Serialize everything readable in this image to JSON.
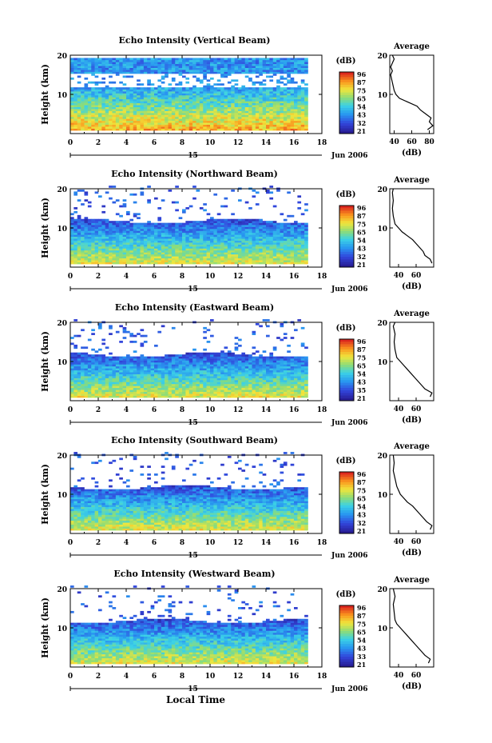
{
  "chart_data": [
    {
      "type": "heatmap",
      "title": "Echo Intensity (Vertical Beam)",
      "ylabel": "Height (km)",
      "xlim": [
        0,
        18
      ],
      "ylim": [
        0,
        20
      ],
      "x_ticks": [
        "0",
        "2",
        "4",
        "6",
        "8",
        "10",
        "12",
        "14",
        "16",
        "18"
      ],
      "y_ticks": [
        "20",
        "10"
      ],
      "date_label": "15",
      "month_label": "Jun 2006",
      "colorbar_unit": "(dB)",
      "colorbar_ticks": [
        "96",
        "87",
        "75",
        "65",
        "54",
        "43",
        "32",
        "21"
      ],
      "average_title": "Average",
      "average_xlabel": "(dB)",
      "average_x_ticks": [
        "40",
        "60",
        "80"
      ],
      "average_y_ticks": [
        "20",
        "10"
      ],
      "average_xlim": [
        35,
        85
      ],
      "average_profile": [
        [
          78,
          1
        ],
        [
          84,
          2
        ],
        [
          80,
          3
        ],
        [
          82,
          4
        ],
        [
          76,
          5
        ],
        [
          70,
          6
        ],
        [
          66,
          7
        ],
        [
          56,
          8
        ],
        [
          46,
          9
        ],
        [
          42,
          10
        ],
        [
          40,
          11
        ],
        [
          38,
          13
        ],
        [
          36,
          15
        ],
        [
          38,
          16
        ],
        [
          36,
          17
        ],
        [
          38,
          18
        ],
        [
          40,
          19
        ],
        [
          38,
          20
        ]
      ],
      "colorscale": "jet",
      "band_top_km": 19,
      "gap_range_km": [
        11.5,
        15
      ]
    },
    {
      "type": "heatmap",
      "title": "Echo Intensity (Northward Beam)",
      "ylabel": "Height (km)",
      "xlim": [
        0,
        18
      ],
      "ylim": [
        0,
        20
      ],
      "x_ticks": [
        "0",
        "2",
        "4",
        "6",
        "8",
        "10",
        "12",
        "14",
        "16",
        "18"
      ],
      "y_ticks": [
        "20",
        "10"
      ],
      "date_label": "15",
      "month_label": "Jun 2006",
      "colorbar_unit": "(dB)",
      "colorbar_ticks": [
        "96",
        "87",
        "75",
        "65",
        "54",
        "43",
        "32",
        "21"
      ],
      "average_title": "Average",
      "average_xlabel": "(dB)",
      "average_x_ticks": [
        "40",
        "60"
      ],
      "average_y_ticks": [
        "20",
        "10"
      ],
      "average_xlim": [
        30,
        80
      ],
      "average_profile": [
        [
          78,
          1
        ],
        [
          76,
          2
        ],
        [
          70,
          3
        ],
        [
          68,
          4
        ],
        [
          64,
          5
        ],
        [
          60,
          6
        ],
        [
          56,
          7
        ],
        [
          50,
          8
        ],
        [
          44,
          9
        ],
        [
          40,
          10
        ],
        [
          36,
          11
        ],
        [
          34,
          13
        ],
        [
          33,
          15
        ],
        [
          34,
          17
        ],
        [
          33,
          19
        ],
        [
          34,
          20
        ]
      ],
      "colorscale": "jet",
      "band_top_km": 11.5,
      "gap_range_km": [
        11.5,
        20
      ]
    },
    {
      "type": "heatmap",
      "title": "Echo Intensity (Eastward Beam)",
      "ylabel": "Height (km)",
      "xlim": [
        0,
        18
      ],
      "ylim": [
        0,
        20
      ],
      "x_ticks": [
        "0",
        "2",
        "4",
        "6",
        "8",
        "10",
        "12",
        "14",
        "16",
        "18"
      ],
      "y_ticks": [
        "20",
        "10"
      ],
      "date_label": "15",
      "month_label": "Jun 2006",
      "colorbar_unit": "(dB)",
      "colorbar_ticks": [
        "96",
        "87",
        "75",
        "65",
        "54",
        "43",
        "35",
        "21"
      ],
      "average_title": "Average",
      "average_xlabel": "(dB)",
      "average_x_ticks": [
        "40",
        "60"
      ],
      "average_y_ticks": [
        "20",
        "10"
      ],
      "average_xlim": [
        30,
        80
      ],
      "average_profile": [
        [
          76,
          1
        ],
        [
          78,
          2
        ],
        [
          70,
          3
        ],
        [
          66,
          4
        ],
        [
          62,
          5
        ],
        [
          58,
          6
        ],
        [
          54,
          7
        ],
        [
          50,
          8
        ],
        [
          46,
          9
        ],
        [
          42,
          10
        ],
        [
          38,
          11
        ],
        [
          36,
          13
        ],
        [
          35,
          15
        ],
        [
          36,
          17
        ],
        [
          34,
          19
        ],
        [
          36,
          20
        ]
      ],
      "colorscale": "jet",
      "band_top_km": 11.5,
      "gap_range_km": [
        11.5,
        20
      ]
    },
    {
      "type": "heatmap",
      "title": "Echo Intensity (Southward Beam)",
      "ylabel": "Height (km)",
      "xlim": [
        0,
        18
      ],
      "ylim": [
        0,
        20
      ],
      "x_ticks": [
        "0",
        "2",
        "4",
        "6",
        "8",
        "10",
        "12",
        "14",
        "16",
        "18"
      ],
      "y_ticks": [
        "20",
        "10"
      ],
      "date_label": "15",
      "month_label": "Jun 2006",
      "colorbar_unit": "(dB)",
      "colorbar_ticks": [
        "96",
        "87",
        "75",
        "65",
        "54",
        "43",
        "32",
        "21"
      ],
      "average_title": "Average",
      "average_xlabel": "(dB)",
      "average_x_ticks": [
        "40",
        "60"
      ],
      "average_y_ticks": [
        "20",
        "10"
      ],
      "average_xlim": [
        30,
        80
      ],
      "average_profile": [
        [
          76,
          1
        ],
        [
          78,
          2
        ],
        [
          72,
          3
        ],
        [
          68,
          4
        ],
        [
          64,
          5
        ],
        [
          60,
          6
        ],
        [
          56,
          7
        ],
        [
          50,
          8
        ],
        [
          46,
          9
        ],
        [
          42,
          10
        ],
        [
          40,
          11
        ],
        [
          38,
          12
        ],
        [
          36,
          14
        ],
        [
          34,
          16
        ],
        [
          35,
          18
        ],
        [
          34,
          20
        ]
      ],
      "colorscale": "jet",
      "band_top_km": 11.5,
      "gap_range_km": [
        11.5,
        20
      ]
    },
    {
      "type": "heatmap",
      "title": "Echo Intensity (Westward Beam)",
      "ylabel": "Height (km)",
      "xlim": [
        0,
        18
      ],
      "ylim": [
        0,
        20
      ],
      "x_ticks": [
        "0",
        "2",
        "4",
        "6",
        "8",
        "10",
        "12",
        "14",
        "16",
        "18"
      ],
      "y_ticks": [
        "20",
        "10"
      ],
      "date_label": "15",
      "month_label": "Jun 2006",
      "colorbar_unit": "(dB)",
      "colorbar_ticks": [
        "96",
        "87",
        "75",
        "65",
        "54",
        "43",
        "33",
        "21"
      ],
      "average_title": "Average",
      "average_xlabel": "(dB)",
      "average_x_ticks": [
        "40",
        "60"
      ],
      "average_y_ticks": [
        "20",
        "10"
      ],
      "average_xlim": [
        30,
        80
      ],
      "average_profile": [
        [
          74,
          1
        ],
        [
          76,
          2
        ],
        [
          70,
          3
        ],
        [
          66,
          4
        ],
        [
          62,
          5
        ],
        [
          58,
          6
        ],
        [
          54,
          7
        ],
        [
          50,
          8
        ],
        [
          46,
          9
        ],
        [
          42,
          10
        ],
        [
          38,
          11
        ],
        [
          36,
          12
        ],
        [
          35,
          14
        ],
        [
          34,
          16
        ],
        [
          36,
          18
        ],
        [
          34,
          20
        ]
      ],
      "colorscale": "jet",
      "band_top_km": 11.5,
      "gap_range_km": [
        11.5,
        20
      ]
    }
  ],
  "footer": {
    "xlabel": "Local Time"
  }
}
